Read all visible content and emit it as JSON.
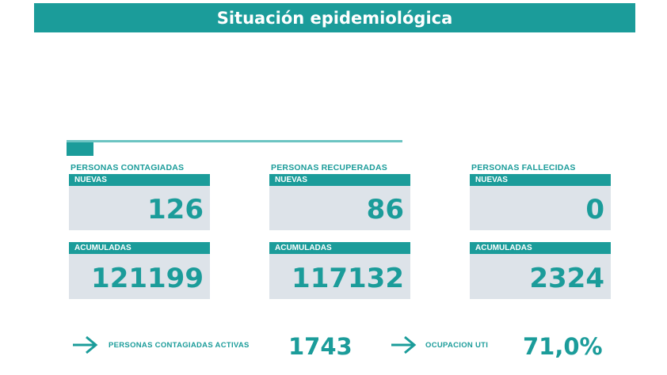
{
  "header": {
    "title": "Situación epidemiológica"
  },
  "cards": [
    {
      "title": "PERSONAS CONTAGIADAS",
      "new_label": "NUEVAS",
      "new_value": "126",
      "total_label": "ACUMULADAS",
      "total_value": "121199"
    },
    {
      "title": "PERSONAS RECUPERADAS",
      "new_label": "NUEVAS",
      "new_value": "86",
      "total_label": "ACUMULADAS",
      "total_value": "117132"
    },
    {
      "title": "PERSONAS FALLECIDAS",
      "new_label": "NUEVAS",
      "new_value": "0",
      "total_label": "ACUMULADAS",
      "total_value": "2324"
    }
  ],
  "footer": {
    "active_label": "PERSONAS CONTAGIADAS ACTIVAS",
    "active_value": "1743",
    "uti_label": "OCUPACION UTI",
    "uti_value": "71,0%"
  },
  "colors": {
    "accent": "#1b9c9a",
    "panel": "#dde3e9"
  },
  "icons": [
    "arrow-right-icon"
  ]
}
